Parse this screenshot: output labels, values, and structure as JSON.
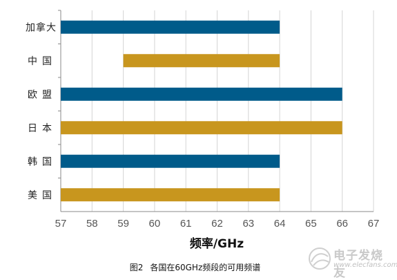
{
  "chart_data": {
    "type": "bar",
    "orientation": "horizontal",
    "categories": [
      "加拿大",
      "中国",
      "欧盟",
      "日本",
      "韩国",
      "美国"
    ],
    "ranges": [
      [
        57,
        64
      ],
      [
        59,
        64
      ],
      [
        57,
        66
      ],
      [
        57,
        66
      ],
      [
        57,
        64
      ],
      [
        57,
        64
      ]
    ],
    "xlabel": "频率/GHz",
    "xlim": [
      57,
      67
    ],
    "xticks": [
      57,
      58,
      59,
      60,
      61,
      62,
      63,
      64,
      65,
      66,
      67
    ],
    "grid": "vertical",
    "colors": {
      "blue": "#005b8a",
      "gold": "#c8961e"
    },
    "bar_colors": [
      "blue",
      "gold",
      "blue",
      "gold",
      "blue",
      "gold"
    ]
  },
  "caption": {
    "figure": "图2",
    "text": "各国在60GHz频段的可用频谱"
  },
  "watermark": {
    "title": "电子发烧友",
    "url": "www.elecfans.com"
  }
}
